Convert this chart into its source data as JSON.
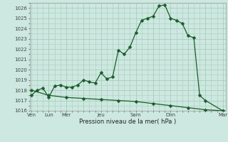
{
  "bg_color": "#cce8e0",
  "grid_color": "#aaccbb",
  "line_color": "#1a5c2a",
  "xlabel": "Pression niveau de la mer( hPa )",
  "ylim": [
    1016,
    1026.5
  ],
  "yticks": [
    1016,
    1017,
    1018,
    1019,
    1020,
    1021,
    1022,
    1023,
    1024,
    1025,
    1026
  ],
  "xtick_labels": [
    "Ven",
    "Lun",
    "Mer",
    "",
    "Jeu",
    "",
    "Sam",
    "",
    "Dim",
    "",
    "",
    "Mar"
  ],
  "xtick_positions": [
    0,
    3,
    6,
    9,
    12,
    15,
    18,
    21,
    24,
    27,
    30,
    33
  ],
  "xlim": [
    -0.3,
    33.5
  ],
  "line1_x": [
    0,
    1,
    2,
    3,
    4,
    5,
    6,
    7,
    8,
    9,
    10,
    11,
    12,
    13,
    14,
    15,
    16,
    17,
    18,
    19,
    20,
    21,
    22,
    23,
    24,
    25,
    26,
    27,
    28,
    29,
    30,
    33
  ],
  "line1_y": [
    1017.5,
    1018.0,
    1018.2,
    1017.3,
    1018.4,
    1018.5,
    1018.3,
    1018.3,
    1018.5,
    1019.0,
    1018.8,
    1018.7,
    1019.7,
    1019.1,
    1019.3,
    1021.9,
    1021.5,
    1022.2,
    1023.6,
    1024.8,
    1025.0,
    1025.2,
    1026.2,
    1026.3,
    1025.0,
    1024.8,
    1024.5,
    1023.3,
    1023.1,
    1017.5,
    1017.0,
    1016.0
  ],
  "line2_x": [
    0,
    3,
    6,
    9,
    12,
    15,
    18,
    21,
    24,
    27,
    30,
    33
  ],
  "line2_y": [
    1018.0,
    1017.5,
    1017.3,
    1017.2,
    1017.1,
    1017.0,
    1016.9,
    1016.7,
    1016.5,
    1016.3,
    1016.1,
    1016.0
  ],
  "marker_size1": 2.5,
  "marker_size2": 2.5
}
